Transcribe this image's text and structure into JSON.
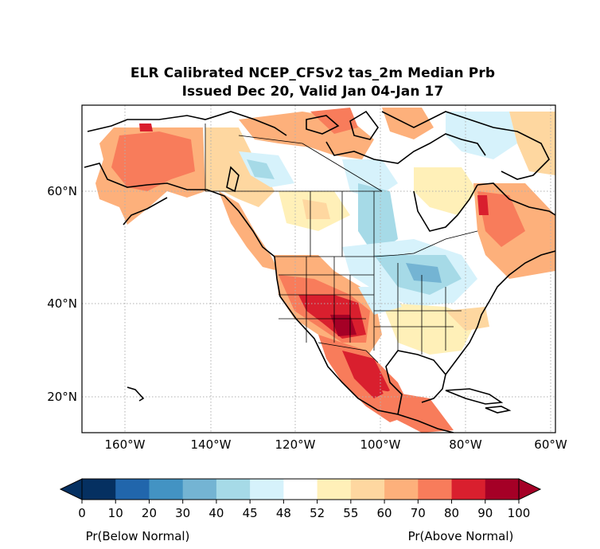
{
  "title": {
    "line1": "ELR Calibrated NCEP_CFSv2 tas_2m Median Prb",
    "line2": "Issued Dec 20, Valid Jan 04-Jan 17"
  },
  "axes": {
    "lon_ticks": [
      "160°W",
      "140°W",
      "120°W",
      "100°W",
      "80°W",
      "60°W"
    ],
    "lat_ticks": [
      "60°N",
      "40°N",
      "20°N"
    ],
    "lon_values": [
      -160,
      -140,
      -120,
      -100,
      -80,
      -60
    ],
    "lat_values": [
      60,
      40,
      20
    ],
    "lon_range": [
      -170,
      -60
    ],
    "lat_range": [
      13,
      75
    ],
    "grid": "dotted"
  },
  "colorbar": {
    "ticks": [
      "0",
      "10",
      "20",
      "30",
      "40",
      "45",
      "48",
      "52",
      "55",
      "60",
      "70",
      "80",
      "90",
      "100"
    ],
    "colors": [
      "#053061",
      "#2166ac",
      "#4393c3",
      "#74b4d3",
      "#a6dae7",
      "#d6f2fb",
      "#ffffff",
      "#fff0b8",
      "#fed7a0",
      "#fdb07b",
      "#f87c5b",
      "#d91f2e",
      "#a50026"
    ],
    "under_color": "#053061",
    "over_color": "#a50026",
    "left_label": "Pr(Below Normal)",
    "right_label": "Pr(Above Normal)"
  }
}
